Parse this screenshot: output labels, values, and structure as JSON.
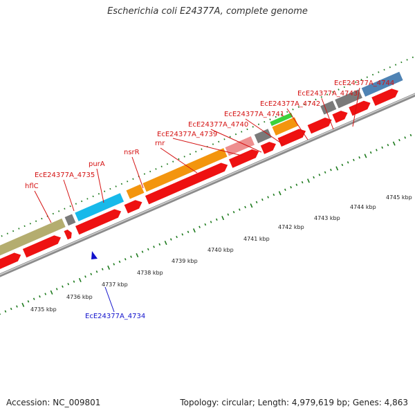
{
  "title": "Escherichia coli E24377A, complete genome",
  "footer": {
    "accession": "Accession: NC_009801",
    "topology": "Topology: circular; Length: 4,979,619 bp; Genes: 4,863"
  },
  "colors": {
    "red": "#ee1111",
    "olive": "#b4ad6f",
    "gray": "#7a7a7a",
    "cyan": "#17b9ea",
    "orange": "#f3950e",
    "pink": "#ee8f8f",
    "green": "#3bd23b",
    "steel": "#4f83b4",
    "tick": "#1d7a1d",
    "label_red": "#d41111",
    "label_blue": "#1111cc"
  },
  "ruler_labels": [
    "4735 kbp",
    "4736 kbp",
    "4737 kbp",
    "4738 kbp",
    "4739 kbp",
    "4740 kbp",
    "4741 kbp",
    "4742 kbp",
    "4743 kbp",
    "4744 kbp",
    "4745 kbp"
  ],
  "gene_labels": [
    {
      "text": "hflC",
      "color": "red"
    },
    {
      "text": "EcE24377A_4735",
      "color": "red"
    },
    {
      "text": "purA",
      "color": "red"
    },
    {
      "text": "nsrR",
      "color": "red"
    },
    {
      "text": "rnr",
      "color": "red"
    },
    {
      "text": "EcE24377A_4739",
      "color": "red"
    },
    {
      "text": "EcE24377A_4740",
      "color": "red"
    },
    {
      "text": "EcE24377A_4741",
      "color": "red"
    },
    {
      "text": "EcE24377A_4742",
      "color": "red"
    },
    {
      "text": "EcE24377A_4743",
      "color": "red"
    },
    {
      "text": "EcE24377A_4744",
      "color": "red"
    },
    {
      "text": "EcE24377A_4734",
      "color": "blue"
    }
  ]
}
